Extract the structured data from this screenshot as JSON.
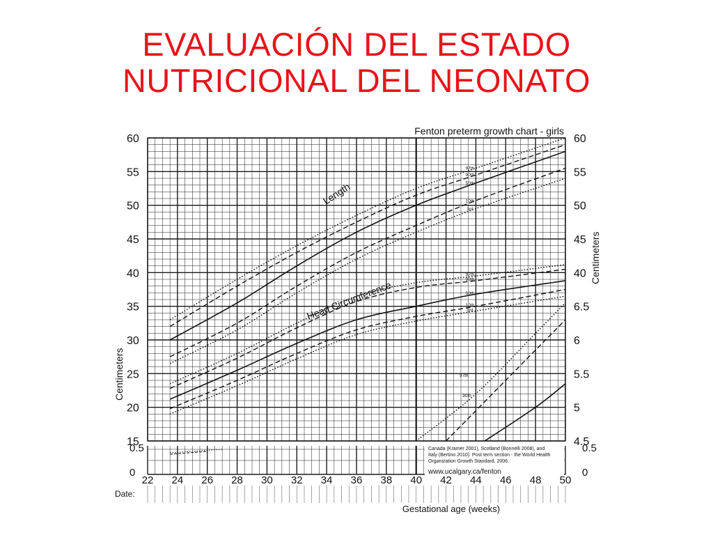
{
  "slide": {
    "title_line1": "EVALUACIÓN DEL ESTADO",
    "title_line2": "NUTRICIONAL DEL NEONATO"
  },
  "colors": {
    "title": "#e8141b",
    "ink": "#111111",
    "grid": "#1a1a1a"
  },
  "chart_data": {
    "type": "line",
    "title": "Fenton preterm growth chart - girls",
    "xlabel": "Gestational age (weeks)",
    "ylabel_left": "Centimeters",
    "ylabel_right": "Centimeters",
    "xlim": [
      22,
      50
    ],
    "ylim": [
      15,
      60
    ],
    "x_ticks": [
      22,
      24,
      26,
      28,
      30,
      32,
      34,
      36,
      38,
      40,
      42,
      44,
      46,
      48,
      50
    ],
    "y_ticks_left": [
      15,
      20,
      25,
      30,
      35,
      40,
      45,
      50,
      55,
      60
    ],
    "y_ticks_right": [
      "60",
      "55",
      "50",
      "45",
      "40",
      "6.5",
      "6",
      "5.5",
      "5",
      "4.5"
    ],
    "weight_strip": {
      "left_ticks": [
        "0.5",
        "0"
      ],
      "right_ticks": [
        "0.5",
        "0"
      ]
    },
    "date_label": "Date:",
    "grid": true,
    "section_labels": [
      "Length",
      "Head Circumference"
    ],
    "percentile_labels": {
      "length": [
        "97th",
        "90th",
        "50th",
        "10th",
        "3rd"
      ],
      "head": [
        "97th",
        "90th",
        "50th",
        "10th",
        "3rd"
      ],
      "weight": [
        "97th",
        "90th"
      ]
    },
    "reference_text": {
      "line1": "Canada (Kramer 2001), Scotland (Bonnelli 2008), and",
      "line2": "Italy (Bertino 2010). Post term section - the World Health",
      "line3": "Organization Growth Standard, 2006.",
      "url": "www.ucalgary.ca/fenton"
    },
    "series": [
      {
        "group": "length",
        "name": "97th",
        "style": "dotted",
        "x": [
          23.5,
          28,
          32,
          36,
          40,
          44,
          50
        ],
        "y": [
          33,
          39,
          44,
          48.5,
          52.5,
          55.5,
          60
        ]
      },
      {
        "group": "length",
        "name": "90th",
        "style": "dashed",
        "x": [
          23.5,
          28,
          32,
          36,
          40,
          44,
          50
        ],
        "y": [
          32,
          38,
          43,
          47.5,
          51.5,
          54.5,
          59
        ]
      },
      {
        "group": "length",
        "name": "50th",
        "style": "solid",
        "x": [
          23.5,
          28,
          32,
          36,
          40,
          44,
          50
        ],
        "y": [
          30,
          35.5,
          41,
          46,
          50,
          53.3,
          58
        ]
      },
      {
        "group": "length",
        "name": "10th",
        "style": "dashed",
        "x": [
          23.5,
          28,
          32,
          36,
          40,
          44,
          50
        ],
        "y": [
          27.5,
          32.5,
          38,
          43,
          47,
          50.7,
          55.5
        ]
      },
      {
        "group": "length",
        "name": "3rd",
        "style": "dotted",
        "x": [
          23.5,
          28,
          32,
          36,
          40,
          44,
          50
        ],
        "y": [
          26.5,
          31.5,
          37,
          42,
          46,
          49.5,
          54
        ]
      },
      {
        "group": "head",
        "name": "97th",
        "style": "dotted",
        "x": [
          23.5,
          28,
          32,
          36,
          40,
          44,
          50
        ],
        "y": [
          23.5,
          28,
          32.5,
          36.5,
          38.5,
          39.5,
          41.2
        ]
      },
      {
        "group": "head",
        "name": "90th",
        "style": "dashed",
        "x": [
          23.5,
          28,
          32,
          36,
          40,
          44,
          50
        ],
        "y": [
          22.8,
          27.3,
          31.8,
          35.7,
          37.8,
          38.8,
          40.5
        ]
      },
      {
        "group": "head",
        "name": "50th",
        "style": "solid",
        "x": [
          23.5,
          28,
          32,
          36,
          40,
          44,
          50
        ],
        "y": [
          21.2,
          25.5,
          29.5,
          33,
          35,
          36.8,
          38.8
        ]
      },
      {
        "group": "head",
        "name": "10th",
        "style": "dashed",
        "x": [
          23.5,
          28,
          32,
          36,
          40,
          44,
          50
        ],
        "y": [
          19.8,
          24,
          28,
          31.5,
          33.5,
          35,
          37.5
        ]
      },
      {
        "group": "head",
        "name": "3rd",
        "style": "dotted",
        "x": [
          23.5,
          28,
          32,
          36,
          40,
          44,
          50
        ],
        "y": [
          19,
          23.2,
          27.2,
          30.8,
          32.8,
          34.3,
          36.5
        ]
      },
      {
        "group": "weight",
        "name": "97th",
        "style": "dotted",
        "x": [
          40,
          44,
          48,
          50
        ],
        "y": [
          15,
          22,
          31,
          35.5
        ]
      },
      {
        "group": "weight",
        "name": "90th",
        "style": "dashed",
        "x": [
          42,
          46,
          50
        ],
        "y": [
          15,
          24,
          33
        ]
      },
      {
        "group": "weight",
        "name": "50th",
        "style": "solid",
        "x": [
          44.6,
          48,
          50
        ],
        "y": [
          15,
          20,
          23.5
        ]
      }
    ]
  }
}
